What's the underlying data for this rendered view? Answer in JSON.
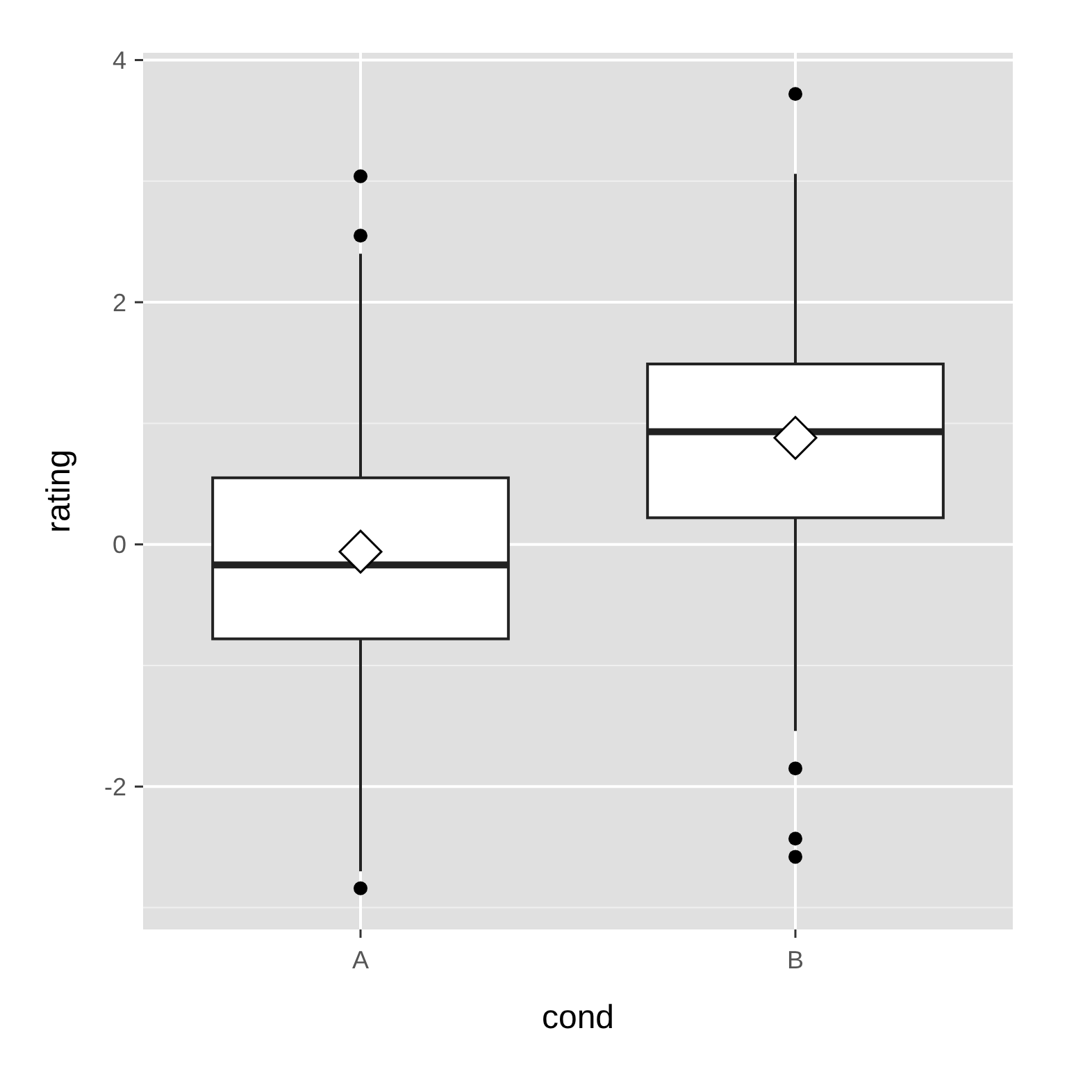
{
  "chart_data": {
    "type": "box",
    "xlabel": "cond",
    "ylabel": "rating",
    "categories": [
      "A",
      "B"
    ],
    "boxes": [
      {
        "low": -2.7,
        "q1": -0.78,
        "median": -0.17,
        "q3": 0.55,
        "high": 2.4,
        "mean": -0.06,
        "outliers": [
          3.04,
          2.55,
          -2.84
        ]
      },
      {
        "low": -1.54,
        "q1": 0.22,
        "median": 0.93,
        "q3": 1.49,
        "high": 3.06,
        "mean": 0.88,
        "outliers": [
          3.72,
          -1.85,
          -2.43,
          -2.58
        ]
      }
    ],
    "ylim": [
      -3.18,
      4.06
    ],
    "yticks": [
      -2,
      0,
      2,
      4
    ],
    "grid": true
  }
}
